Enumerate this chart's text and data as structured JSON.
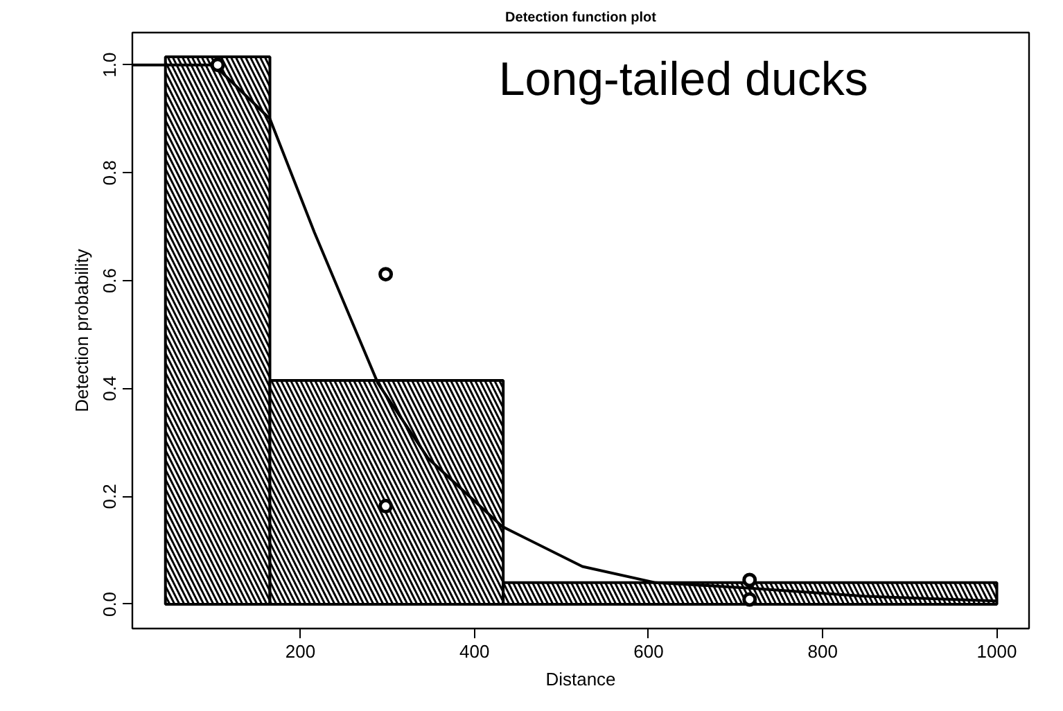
{
  "chart_data": {
    "type": "histogram",
    "title": "Detection function plot",
    "xlabel": "Distance",
    "ylabel": "Detection probability",
    "bins": [
      45,
      165,
      433,
      1000
    ],
    "values": [
      1.015,
      0.415,
      0.04
    ],
    "color": "#000000",
    "series": [
      {
        "type": "line",
        "x": [
          7,
          101,
          165,
          216,
          289,
          347,
          432,
          524,
          608,
          716,
          847,
          1000
        ],
        "values": [
          1.0,
          1.0,
          0.9,
          0.69,
          0.41,
          0.27,
          0.144,
          0.07,
          0.04,
          0.03,
          0.015,
          0.006
        ],
        "color": "#000000"
      },
      {
        "type": "scatter",
        "x": [
          105,
          298,
          298,
          716,
          716
        ],
        "values": [
          1.0,
          0.612,
          0.182,
          0.045,
          0.009
        ],
        "color": "#000000",
        "marker": "circle"
      }
    ],
    "annotations": [
      "Long-tailed ducks"
    ],
    "xlim": [
      7,
      1037
    ],
    "ylim": [
      -0.045,
      1.06
    ],
    "xticks": [
      200,
      400,
      600,
      800,
      1000
    ],
    "yticks": [
      {
        "value": 0,
        "label": "0.0"
      },
      {
        "value": 0.2,
        "label": "0.2"
      },
      {
        "value": 0.4,
        "label": "0.4"
      },
      {
        "value": 0.6,
        "label": "0.6"
      },
      {
        "value": 0.8,
        "label": "0.8"
      },
      {
        "value": 1.0,
        "label": "1.0"
      }
    ],
    "grid": false
  }
}
